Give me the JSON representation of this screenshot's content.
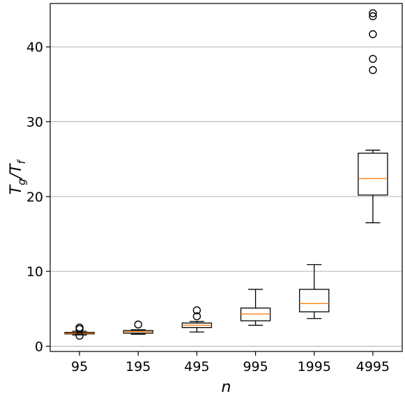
{
  "chart_data": {
    "type": "box",
    "xlabel": "n",
    "ylabel_main": "T",
    "ylabel_sub1": "g",
    "ylabel_slash": "/",
    "ylabel_sub2": "f",
    "ylim": [
      -0.7,
      45.8
    ],
    "yticks": [
      0,
      10,
      20,
      30,
      40
    ],
    "ytick_labels": [
      "0",
      "10",
      "20",
      "30",
      "40"
    ],
    "grid": "horizontal",
    "categories": [
      "95",
      "195",
      "495",
      "995",
      "1995",
      "4995"
    ],
    "boxes": [
      {
        "whisker_low": 1.5,
        "q1": 1.65,
        "median": 1.75,
        "q3": 1.85,
        "whisker_high": 2.0,
        "outliers": [
          1.4,
          2.3,
          2.5
        ]
      },
      {
        "whisker_low": 1.6,
        "q1": 1.75,
        "median": 1.95,
        "q3": 2.1,
        "whisker_high": 2.2,
        "outliers": [
          2.9
        ]
      },
      {
        "whisker_low": 1.9,
        "q1": 2.5,
        "median": 2.8,
        "q3": 3.1,
        "whisker_high": 3.3,
        "outliers": [
          4.0,
          4.8
        ]
      },
      {
        "whisker_low": 2.8,
        "q1": 3.4,
        "median": 4.3,
        "q3": 5.1,
        "whisker_high": 7.6,
        "outliers": []
      },
      {
        "whisker_low": 3.7,
        "q1": 4.6,
        "median": 5.7,
        "q3": 7.6,
        "whisker_high": 10.9,
        "outliers": []
      },
      {
        "whisker_low": 16.5,
        "q1": 20.2,
        "median": 22.4,
        "q3": 25.8,
        "whisker_high": 26.2,
        "outliers": [
          36.9,
          38.4,
          41.7,
          44.1,
          44.5
        ]
      }
    ],
    "colors": {
      "box": "#000000",
      "median": "#ff7f0e",
      "grid": "#b0b0b0"
    }
  }
}
